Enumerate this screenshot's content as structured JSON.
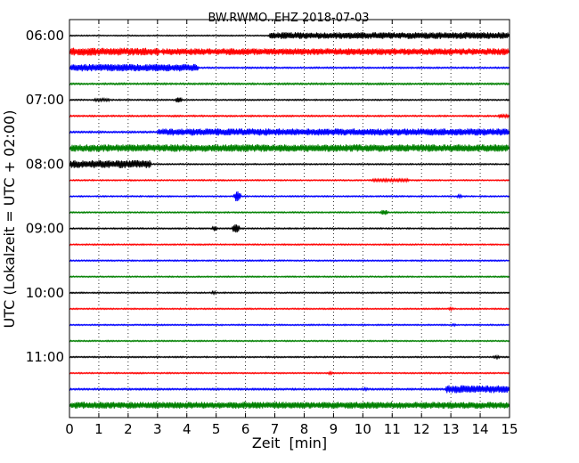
{
  "chart_data": {
    "type": "line",
    "title": "BW.RWMO..EHZ 2018-07-03",
    "xlabel": "Zeit  [min]",
    "ylabel": "UTC (Lokalzeit = UTC + 02:00)",
    "xlim": [
      0,
      15
    ],
    "x_ticks": [
      "0",
      "1",
      "2",
      "3",
      "4",
      "5",
      "6",
      "7",
      "8",
      "9",
      "10",
      "11",
      "12",
      "13",
      "14",
      "15"
    ],
    "y_tick_labels": [
      "06:00",
      "07:00",
      "08:00",
      "09:00",
      "10:00",
      "11:00"
    ],
    "grid": "vertical dotted",
    "trace_interval_min": 15,
    "series": [
      {
        "start": "06:00",
        "color": "#000000",
        "base": 0.06,
        "bursts": [
          {
            "from": 6.8,
            "to": 15.0,
            "amp": 0.38
          }
        ]
      },
      {
        "start": "06:15",
        "color": "#ff0000",
        "base": 0.14,
        "bursts": [
          {
            "from": 0.0,
            "to": 3.1,
            "amp": 0.45
          },
          {
            "from": 3.1,
            "to": 15.0,
            "amp": 0.38
          }
        ]
      },
      {
        "start": "06:30",
        "color": "#0000ff",
        "base": 0.08,
        "bursts": [
          {
            "from": 0.0,
            "to": 4.4,
            "amp": 0.42
          }
        ]
      },
      {
        "start": "06:45",
        "color": "#008000",
        "base": 0.09,
        "bursts": []
      },
      {
        "start": "07:00",
        "color": "#000000",
        "base": 0.07,
        "bursts": [
          {
            "from": 3.6,
            "to": 3.85,
            "amp": 0.3
          },
          {
            "from": 0.8,
            "to": 1.4,
            "amp": 0.15
          }
        ]
      },
      {
        "start": "07:15",
        "color": "#ff0000",
        "base": 0.08,
        "bursts": [
          {
            "from": 14.6,
            "to": 15.0,
            "amp": 0.2
          }
        ]
      },
      {
        "start": "07:30",
        "color": "#0000ff",
        "base": 0.09,
        "bursts": [
          {
            "from": 3.0,
            "to": 15.0,
            "amp": 0.4
          }
        ]
      },
      {
        "start": "07:45",
        "color": "#008000",
        "base": 0.1,
        "bursts": [
          {
            "from": 0.0,
            "to": 15.0,
            "amp": 0.42
          }
        ]
      },
      {
        "start": "08:00",
        "color": "#000000",
        "base": 0.07,
        "bursts": [
          {
            "from": 0.0,
            "to": 2.8,
            "amp": 0.45
          }
        ]
      },
      {
        "start": "08:15",
        "color": "#ff0000",
        "base": 0.07,
        "bursts": [
          {
            "from": 10.3,
            "to": 11.6,
            "amp": 0.15
          }
        ]
      },
      {
        "start": "08:30",
        "color": "#0000ff",
        "base": 0.07,
        "bursts": [
          {
            "from": 5.6,
            "to": 5.85,
            "amp": 0.6
          },
          {
            "from": 13.2,
            "to": 13.4,
            "amp": 0.2
          }
        ]
      },
      {
        "start": "08:45",
        "color": "#008000",
        "base": 0.07,
        "bursts": [
          {
            "from": 10.6,
            "to": 10.85,
            "amp": 0.3
          }
        ]
      },
      {
        "start": "09:00",
        "color": "#000000",
        "base": 0.07,
        "bursts": [
          {
            "from": 4.85,
            "to": 5.05,
            "amp": 0.3
          },
          {
            "from": 5.55,
            "to": 5.8,
            "amp": 0.6
          }
        ]
      },
      {
        "start": "09:15",
        "color": "#ff0000",
        "base": 0.07,
        "bursts": []
      },
      {
        "start": "09:30",
        "color": "#0000ff",
        "base": 0.07,
        "bursts": []
      },
      {
        "start": "09:45",
        "color": "#008000",
        "base": 0.07,
        "bursts": []
      },
      {
        "start": "10:00",
        "color": "#000000",
        "base": 0.07,
        "bursts": [
          {
            "from": 4.8,
            "to": 5.0,
            "amp": 0.15
          }
        ]
      },
      {
        "start": "10:15",
        "color": "#ff0000",
        "base": 0.07,
        "bursts": [
          {
            "from": 12.9,
            "to": 13.1,
            "amp": 0.15
          }
        ]
      },
      {
        "start": "10:30",
        "color": "#0000ff",
        "base": 0.07,
        "bursts": [
          {
            "from": 13.0,
            "to": 13.2,
            "amp": 0.13
          }
        ]
      },
      {
        "start": "10:45",
        "color": "#008000",
        "base": 0.07,
        "bursts": []
      },
      {
        "start": "11:00",
        "color": "#000000",
        "base": 0.07,
        "bursts": [
          {
            "from": 14.4,
            "to": 14.7,
            "amp": 0.15
          }
        ]
      },
      {
        "start": "11:15",
        "color": "#ff0000",
        "base": 0.07,
        "bursts": [
          {
            "from": 8.8,
            "to": 9.0,
            "amp": 0.2
          }
        ]
      },
      {
        "start": "11:30",
        "color": "#0000ff",
        "base": 0.09,
        "bursts": [
          {
            "from": 12.8,
            "to": 15.0,
            "amp": 0.45
          },
          {
            "from": 10.0,
            "to": 10.2,
            "amp": 0.15
          }
        ]
      },
      {
        "start": "11:45",
        "color": "#008000",
        "base": 0.16,
        "bursts": [
          {
            "from": 0.0,
            "to": 15.0,
            "amp": 0.38
          }
        ]
      }
    ]
  }
}
